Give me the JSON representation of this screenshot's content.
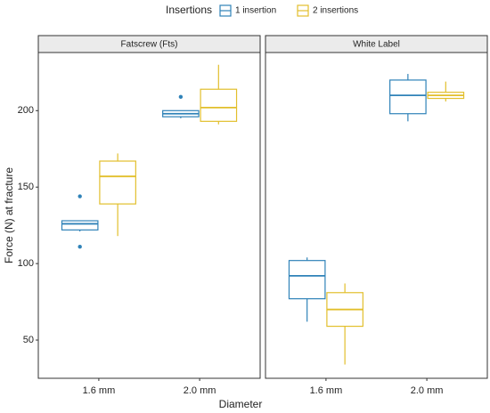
{
  "chart_data": {
    "type": "box",
    "legend_title": "Insertions",
    "series": [
      {
        "name": "1 insertion",
        "color": "#2f82b8"
      },
      {
        "name": "2 insertions",
        "color": "#e2bf2c"
      }
    ],
    "categories": [
      "1.6 mm",
      "2.0 mm"
    ],
    "x_label": "Diameter",
    "y_label": "Force (N) at fracture",
    "ylim": [
      25,
      238
    ],
    "yticks": [
      50,
      100,
      150,
      200
    ],
    "grid": false,
    "panels": [
      {
        "title": "Fatscrew (Fts)",
        "series": [
          {
            "values": [
              {
                "min": 121,
                "q1": 122,
                "median": 126,
                "q3": 128,
                "max": 128,
                "outliers": [
                  144,
                  111
                ]
              },
              {
                "min": 195,
                "q1": 196,
                "median": 198,
                "q3": 200,
                "max": 200,
                "outliers": [
                  209
                ]
              }
            ]
          },
          {
            "values": [
              {
                "min": 118,
                "q1": 139,
                "median": 157,
                "q3": 167,
                "max": 172,
                "outliers": []
              },
              {
                "min": 191,
                "q1": 193,
                "median": 202,
                "q3": 214,
                "max": 230,
                "outliers": []
              }
            ]
          }
        ]
      },
      {
        "title": "White Label",
        "series": [
          {
            "values": [
              {
                "min": 62,
                "q1": 77,
                "median": 92,
                "q3": 102,
                "max": 104,
                "outliers": []
              },
              {
                "min": 193,
                "q1": 198,
                "median": 210,
                "q3": 220,
                "max": 224,
                "outliers": []
              }
            ]
          },
          {
            "values": [
              {
                "min": 34,
                "q1": 59,
                "median": 70,
                "q3": 81,
                "max": 87,
                "outliers": []
              },
              {
                "min": 206,
                "q1": 208,
                "median": 210,
                "q3": 212,
                "max": 219,
                "outliers": []
              }
            ]
          }
        ]
      }
    ]
  }
}
